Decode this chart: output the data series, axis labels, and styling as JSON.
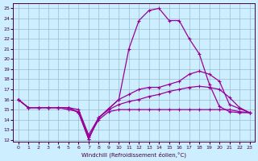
{
  "xlabel": "Windchill (Refroidissement éolien,°C)",
  "bg_color": "#cceeff",
  "line_color": "#990099",
  "grid_color": "#99bbcc",
  "x_data": [
    0,
    1,
    2,
    3,
    4,
    5,
    6,
    7,
    8,
    9,
    10,
    11,
    12,
    13,
    14,
    15,
    16,
    17,
    18,
    19,
    20,
    21,
    22,
    23
  ],
  "series1": [
    16,
    15.2,
    15.2,
    15.2,
    15.2,
    15.2,
    14.7,
    12.1,
    14.2,
    15.1,
    16.0,
    21.0,
    23.8,
    24.8,
    25.0,
    23.8,
    23.8,
    22.0,
    20.5,
    17.5,
    15.3,
    14.8,
    14.7,
    14.7
  ],
  "series2": [
    16,
    15.2,
    15.2,
    15.2,
    15.2,
    15.2,
    14.7,
    12.1,
    14.2,
    15.1,
    16.0,
    16.5,
    17.0,
    17.2,
    17.2,
    17.5,
    17.8,
    18.5,
    18.8,
    18.5,
    17.8,
    15.5,
    15.1,
    14.7
  ],
  "series3": [
    16,
    15.2,
    15.2,
    15.2,
    15.2,
    15.2,
    15.0,
    12.5,
    14.2,
    15.0,
    15.5,
    15.8,
    16.0,
    16.3,
    16.5,
    16.8,
    17.0,
    17.2,
    17.3,
    17.2,
    17.0,
    16.2,
    15.2,
    14.7
  ],
  "series4": [
    16,
    15.2,
    15.2,
    15.2,
    15.2,
    15.0,
    14.8,
    12.3,
    14.0,
    14.8,
    15.0,
    15.0,
    15.0,
    15.0,
    15.0,
    15.0,
    15.0,
    15.0,
    15.0,
    15.0,
    15.0,
    15.0,
    14.8,
    14.7
  ],
  "xlim": [
    -0.5,
    23.5
  ],
  "ylim": [
    11.8,
    25.5
  ],
  "yticks": [
    12,
    13,
    14,
    15,
    16,
    17,
    18,
    19,
    20,
    21,
    22,
    23,
    24,
    25
  ],
  "xticks": [
    0,
    1,
    2,
    3,
    4,
    5,
    6,
    7,
    8,
    9,
    10,
    11,
    12,
    13,
    14,
    15,
    16,
    17,
    18,
    19,
    20,
    21,
    22,
    23
  ]
}
